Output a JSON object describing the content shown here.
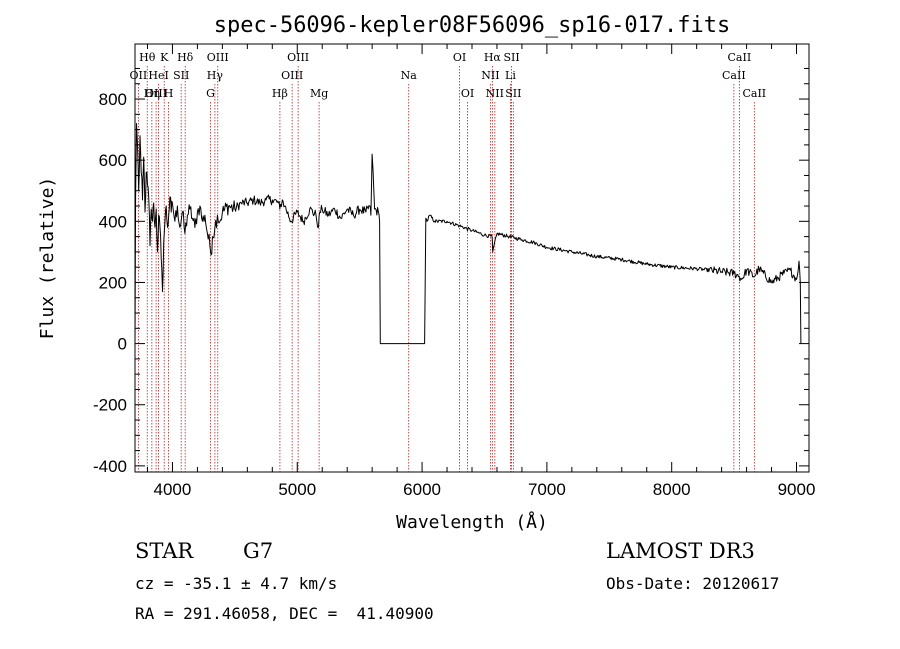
{
  "footer": {
    "object_class": "STAR",
    "subclass": "G7",
    "survey": "LAMOST DR3",
    "cz_text": "cz = -35.1 ± 4.7 km/s",
    "obs_date": "Obs-Date: 20120617",
    "coords_text": "RA = 291.46058, DEC =  41.40900"
  },
  "chart_data": {
    "type": "line",
    "title": "spec-56096-kepler08F56096_sp16-017.fits",
    "xlabel": "Wavelength (Å)",
    "ylabel": "Flux (relative)",
    "xlim": [
      3700,
      9100
    ],
    "ylim": [
      -420,
      980
    ],
    "xticks": [
      4000,
      5000,
      6000,
      7000,
      8000,
      9000
    ],
    "yticks": [
      -400,
      -200,
      0,
      200,
      400,
      600,
      800
    ],
    "line_color": "#000000",
    "marker_color": "#b22222",
    "spectral_lines": [
      {
        "label": "Hθ",
        "wave": 3798,
        "row": 0
      },
      {
        "label": "OII",
        "wave": 3727,
        "row": 1
      },
      {
        "label": "OIII",
        "wave": 3869,
        "row": 2
      },
      {
        "label": "K",
        "wave": 3934,
        "row": 0
      },
      {
        "label": "HeI",
        "wave": 3889,
        "row": 1
      },
      {
        "label": "Hη",
        "wave": 3835,
        "row": 2
      },
      {
        "label": "Hδ",
        "wave": 4102,
        "row": 0
      },
      {
        "label": "SII",
        "wave": 4070,
        "row": 1
      },
      {
        "label": "H",
        "wave": 3969,
        "row": 2
      },
      {
        "label": "OIII",
        "wave": 4363,
        "row": 0
      },
      {
        "label": "Hγ",
        "wave": 4340,
        "row": 1
      },
      {
        "label": "G",
        "wave": 4305,
        "row": 2
      },
      {
        "label": "OIII",
        "wave": 5007,
        "row": 0
      },
      {
        "label": "OIII",
        "wave": 4959,
        "row": 1
      },
      {
        "label": "Hβ",
        "wave": 4861,
        "row": 2
      },
      {
        "label": "Mg",
        "wave": 5175,
        "row": 2
      },
      {
        "label": "Na",
        "wave": 5893,
        "row": 1
      },
      {
        "label": "OI",
        "wave": 6300,
        "row": 0
      },
      {
        "label": "OI",
        "wave": 6364,
        "row": 2
      },
      {
        "label": "Hα",
        "wave": 6563,
        "row": 0
      },
      {
        "label": "NII",
        "wave": 6548,
        "row": 1
      },
      {
        "label": "NII",
        "wave": 6583,
        "row": 2
      },
      {
        "label": "SII",
        "wave": 6717,
        "row": 0
      },
      {
        "label": "Li",
        "wave": 6708,
        "row": 1
      },
      {
        "label": "SII",
        "wave": 6731,
        "row": 2
      },
      {
        "label": "CaII",
        "wave": 8542,
        "row": 0
      },
      {
        "label": "CaII",
        "wave": 8498,
        "row": 1
      },
      {
        "label": "CaII",
        "wave": 8662,
        "row": 2
      }
    ],
    "series": [
      {
        "name": "flux",
        "x": [
          3700,
          3705,
          3712,
          3720,
          3730,
          3740,
          3750,
          3760,
          3770,
          3780,
          3790,
          3800,
          3810,
          3820,
          3830,
          3840,
          3850,
          3860,
          3870,
          3880,
          3890,
          3900,
          3910,
          3920,
          3930,
          3940,
          3950,
          3960,
          3970,
          3980,
          3990,
          4000,
          4020,
          4040,
          4060,
          4080,
          4100,
          4120,
          4140,
          4160,
          4180,
          4200,
          4220,
          4240,
          4260,
          4280,
          4300,
          4310,
          4320,
          4340,
          4360,
          4380,
          4400,
          4450,
          4500,
          4550,
          4600,
          4650,
          4700,
          4750,
          4800,
          4850,
          4860,
          4880,
          4900,
          4950,
          5000,
          5050,
          5100,
          5150,
          5170,
          5180,
          5200,
          5250,
          5300,
          5350,
          5400,
          5450,
          5500,
          5550,
          5580,
          5590,
          5600,
          5620,
          5650,
          5660,
          5665,
          5700,
          5800,
          5900,
          6000,
          6020,
          6030,
          6040,
          6060,
          6100,
          6200,
          6300,
          6400,
          6500,
          6560,
          6563,
          6566,
          6600,
          6700,
          6800,
          6900,
          7000,
          7200,
          7400,
          7600,
          7800,
          8000,
          8200,
          8400,
          8500,
          8540,
          8560,
          8600,
          8660,
          8700,
          8800,
          8900,
          8950,
          9000,
          9020,
          9030,
          9035
        ],
        "y": [
          0,
          480,
          720,
          650,
          500,
          680,
          560,
          470,
          610,
          430,
          560,
          520,
          480,
          320,
          440,
          400,
          460,
          380,
          440,
          300,
          420,
          380,
          280,
          170,
          330,
          400,
          450,
          380,
          420,
          480,
          430,
          460,
          400,
          450,
          380,
          430,
          360,
          420,
          440,
          410,
          380,
          430,
          450,
          400,
          420,
          360,
          320,
          290,
          350,
          380,
          420,
          400,
          430,
          450,
          440,
          460,
          460,
          470,
          460,
          470,
          470,
          460,
          440,
          470,
          450,
          400,
          430,
          400,
          440,
          420,
          380,
          430,
          440,
          420,
          440,
          410,
          440,
          420,
          440,
          430,
          450,
          420,
          620,
          440,
          430,
          400,
          0,
          0,
          0,
          0,
          0,
          0,
          410,
          400,
          420,
          400,
          400,
          385,
          370,
          355,
          350,
          340,
          300,
          360,
          350,
          340,
          330,
          315,
          300,
          285,
          275,
          260,
          250,
          245,
          235,
          230,
          220,
          210,
          240,
          220,
          245,
          200,
          230,
          240,
          210,
          270,
          200,
          0
        ]
      }
    ]
  }
}
